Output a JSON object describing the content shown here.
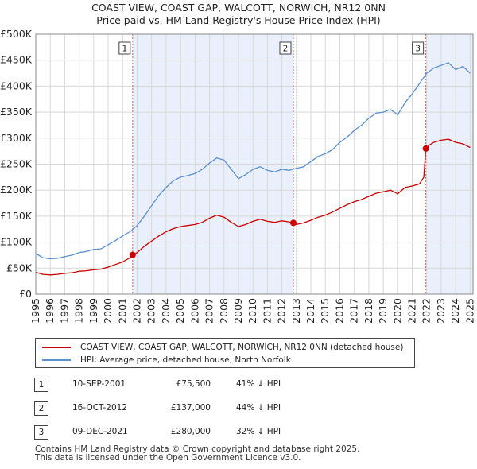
{
  "chart_data": {
    "type": "line",
    "title": "COAST VIEW, COAST GAP, WALCOTT, NORWICH, NR12 0NN",
    "subtitle": "Price paid vs. HM Land Registry's House Price Index (HPI)",
    "ylim": [
      0,
      500000
    ],
    "xlim": [
      1995,
      2025.2
    ],
    "y_ticks": [
      {
        "value": 0,
        "label": "£0"
      },
      {
        "value": 50000,
        "label": "£50K"
      },
      {
        "value": 100000,
        "label": "£100K"
      },
      {
        "value": 150000,
        "label": "£150K"
      },
      {
        "value": 200000,
        "label": "£200K"
      },
      {
        "value": 250000,
        "label": "£250K"
      },
      {
        "value": 300000,
        "label": "£300K"
      },
      {
        "value": 350000,
        "label": "£350K"
      },
      {
        "value": 400000,
        "label": "£400K"
      },
      {
        "value": 450000,
        "label": "£450K"
      },
      {
        "value": 500000,
        "label": "£500K"
      }
    ],
    "x_ticks": [
      "1995",
      "1996",
      "1997",
      "1998",
      "1999",
      "2000",
      "2001",
      "2002",
      "2003",
      "2004",
      "2005",
      "2006",
      "2007",
      "2008",
      "2009",
      "2010",
      "2011",
      "2012",
      "2013",
      "2014",
      "2015",
      "2016",
      "2017",
      "2018",
      "2019",
      "2020",
      "2021",
      "2022",
      "2023",
      "2024",
      "2025"
    ],
    "grid": true,
    "series": [
      {
        "name": "HPI: Average price, detached house, North Norfolk",
        "color": "#5b8fd0",
        "points": [
          [
            1995.0,
            78000
          ],
          [
            1995.5,
            70000
          ],
          [
            1996.0,
            68000
          ],
          [
            1996.5,
            69000
          ],
          [
            1997.0,
            72000
          ],
          [
            1997.5,
            75000
          ],
          [
            1998.0,
            80000
          ],
          [
            1998.5,
            82000
          ],
          [
            1999.0,
            86000
          ],
          [
            1999.5,
            87000
          ],
          [
            2000.0,
            95000
          ],
          [
            2000.5,
            103000
          ],
          [
            2001.0,
            112000
          ],
          [
            2001.5,
            120000
          ],
          [
            2002.0,
            132000
          ],
          [
            2002.5,
            150000
          ],
          [
            2003.0,
            170000
          ],
          [
            2003.5,
            190000
          ],
          [
            2004.0,
            205000
          ],
          [
            2004.5,
            218000
          ],
          [
            2005.0,
            225000
          ],
          [
            2005.5,
            228000
          ],
          [
            2006.0,
            232000
          ],
          [
            2006.5,
            240000
          ],
          [
            2007.0,
            252000
          ],
          [
            2007.5,
            262000
          ],
          [
            2008.0,
            258000
          ],
          [
            2008.5,
            240000
          ],
          [
            2009.0,
            222000
          ],
          [
            2009.5,
            230000
          ],
          [
            2010.0,
            240000
          ],
          [
            2010.5,
            245000
          ],
          [
            2011.0,
            238000
          ],
          [
            2011.5,
            235000
          ],
          [
            2012.0,
            240000
          ],
          [
            2012.5,
            238000
          ],
          [
            2013.0,
            242000
          ],
          [
            2013.5,
            245000
          ],
          [
            2014.0,
            255000
          ],
          [
            2014.5,
            265000
          ],
          [
            2015.0,
            270000
          ],
          [
            2015.5,
            278000
          ],
          [
            2016.0,
            292000
          ],
          [
            2016.5,
            302000
          ],
          [
            2017.0,
            315000
          ],
          [
            2017.5,
            325000
          ],
          [
            2018.0,
            338000
          ],
          [
            2018.5,
            348000
          ],
          [
            2019.0,
            350000
          ],
          [
            2019.5,
            355000
          ],
          [
            2020.0,
            345000
          ],
          [
            2020.5,
            368000
          ],
          [
            2021.0,
            385000
          ],
          [
            2021.5,
            405000
          ],
          [
            2022.0,
            425000
          ],
          [
            2022.5,
            435000
          ],
          [
            2023.0,
            440000
          ],
          [
            2023.5,
            445000
          ],
          [
            2024.0,
            432000
          ],
          [
            2024.5,
            438000
          ],
          [
            2025.0,
            425000
          ]
        ]
      },
      {
        "name": "COAST VIEW, COAST GAP, WALCOTT, NORWICH, NR12 0NN (detached house)",
        "color": "#cc0000",
        "points": [
          [
            1995.0,
            42000
          ],
          [
            1995.5,
            38000
          ],
          [
            1996.0,
            37000
          ],
          [
            1996.5,
            38000
          ],
          [
            1997.0,
            40000
          ],
          [
            1997.5,
            41000
          ],
          [
            1998.0,
            44000
          ],
          [
            1998.5,
            45000
          ],
          [
            1999.0,
            47000
          ],
          [
            1999.5,
            48000
          ],
          [
            2000.0,
            52000
          ],
          [
            2000.5,
            57000
          ],
          [
            2001.0,
            62000
          ],
          [
            2001.5,
            70000
          ],
          [
            2001.7,
            75500
          ],
          [
            2002.0,
            80000
          ],
          [
            2002.5,
            92000
          ],
          [
            2003.0,
            102000
          ],
          [
            2003.5,
            112000
          ],
          [
            2004.0,
            120000
          ],
          [
            2004.5,
            126000
          ],
          [
            2005.0,
            130000
          ],
          [
            2005.5,
            132000
          ],
          [
            2006.0,
            134000
          ],
          [
            2006.5,
            138000
          ],
          [
            2007.0,
            146000
          ],
          [
            2007.5,
            152000
          ],
          [
            2008.0,
            148000
          ],
          [
            2008.5,
            138000
          ],
          [
            2009.0,
            130000
          ],
          [
            2009.5,
            134000
          ],
          [
            2010.0,
            140000
          ],
          [
            2010.5,
            144000
          ],
          [
            2011.0,
            140000
          ],
          [
            2011.5,
            138000
          ],
          [
            2012.0,
            141000
          ],
          [
            2012.5,
            139000
          ],
          [
            2012.79,
            137000
          ],
          [
            2013.0,
            134000
          ],
          [
            2013.5,
            137000
          ],
          [
            2014.0,
            142000
          ],
          [
            2014.5,
            148000
          ],
          [
            2015.0,
            152000
          ],
          [
            2015.5,
            158000
          ],
          [
            2016.0,
            165000
          ],
          [
            2016.5,
            172000
          ],
          [
            2017.0,
            178000
          ],
          [
            2017.5,
            182000
          ],
          [
            2018.0,
            188000
          ],
          [
            2018.5,
            194000
          ],
          [
            2019.0,
            197000
          ],
          [
            2019.5,
            200000
          ],
          [
            2020.0,
            193000
          ],
          [
            2020.5,
            205000
          ],
          [
            2021.0,
            208000
          ],
          [
            2021.5,
            212000
          ],
          [
            2021.8,
            225000
          ],
          [
            2021.94,
            280000
          ],
          [
            2022.2,
            287000
          ],
          [
            2022.5,
            292000
          ],
          [
            2023.0,
            296000
          ],
          [
            2023.5,
            298000
          ],
          [
            2024.0,
            292000
          ],
          [
            2024.5,
            289000
          ],
          [
            2025.0,
            282000
          ]
        ]
      }
    ],
    "sales": [
      {
        "marker": "1",
        "year": 2001.69,
        "value": 75500
      },
      {
        "marker": "2",
        "year": 2012.79,
        "value": 137000
      },
      {
        "marker": "3",
        "year": 2021.94,
        "value": 280000
      }
    ]
  },
  "legend": {
    "property_label": "COAST VIEW, COAST GAP, WALCOTT, NORWICH, NR12 0NN (detached house)",
    "hpi_label": "HPI: Average price, detached house, North Norfolk"
  },
  "sales_table": [
    {
      "num": "1",
      "date": "10-SEP-2001",
      "price": "£75,500",
      "delta": "41% ↓ HPI"
    },
    {
      "num": "2",
      "date": "16-OCT-2012",
      "price": "£137,000",
      "delta": "44% ↓ HPI"
    },
    {
      "num": "3",
      "date": "09-DEC-2021",
      "price": "£280,000",
      "delta": "32% ↓ HPI"
    }
  ],
  "footer": {
    "line1": "Contains HM Land Registry data © Crown copyright and database right 2025.",
    "line2": "This data is licensed under the Open Government Licence v3.0."
  },
  "colors": {
    "property": "#cc0000",
    "hpi": "#5b8fd0",
    "grid": "#d8d8d8",
    "plot_bg": "#ffffff",
    "shade": "#eaf0fb",
    "vline": "#e06060"
  }
}
